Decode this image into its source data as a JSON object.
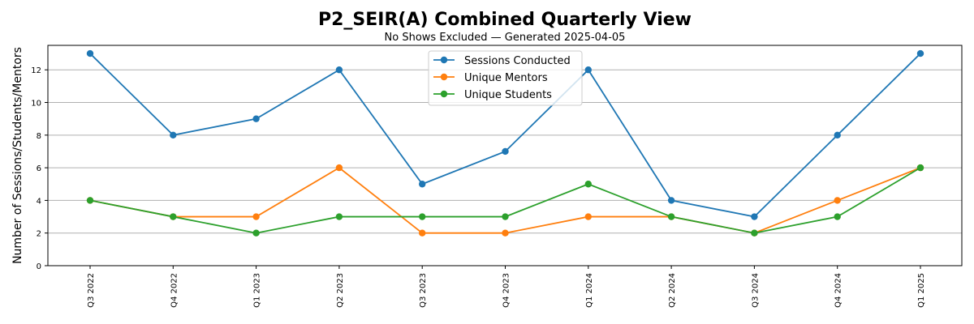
{
  "chart_data": {
    "type": "line",
    "title": "P2_SEIR(A) Combined Quarterly View",
    "subtitle": "No Shows Excluded — Generated 2025-04-05",
    "xlabel": "",
    "ylabel": "Number of Sessions/Students/Mentors",
    "categories": [
      "Q3 2022",
      "Q4 2022",
      "Q1 2023",
      "Q2 2023",
      "Q3 2023",
      "Q4 2023",
      "Q1 2024",
      "Q2 2024",
      "Q3 2024",
      "Q4 2024",
      "Q1 2025"
    ],
    "ylim": [
      0,
      13.5
    ],
    "yticks": [
      "0",
      "2",
      "4",
      "6",
      "8",
      "10",
      "12"
    ],
    "grid": "horizontal",
    "legend_position": "top-center",
    "series": [
      {
        "name": "Sessions Conducted",
        "color": "#1f77b4",
        "values": [
          13,
          8,
          9,
          12,
          5,
          7,
          12,
          4,
          3,
          8,
          13
        ]
      },
      {
        "name": "Unique Mentors",
        "color": "#ff7f0e",
        "values": [
          4,
          3,
          3,
          6,
          2,
          2,
          3,
          3,
          2,
          4,
          6
        ]
      },
      {
        "name": "Unique Students",
        "color": "#2ca02c",
        "values": [
          4,
          3,
          2,
          3,
          3,
          3,
          5,
          3,
          2,
          3,
          6
        ]
      }
    ]
  }
}
